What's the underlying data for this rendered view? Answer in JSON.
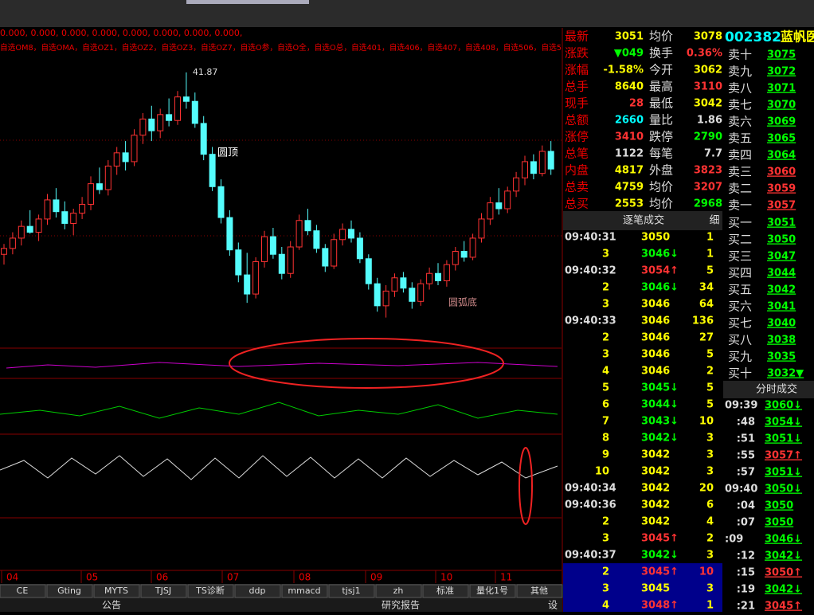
{
  "header": {
    "values_line": "0.000, 0.000, 0.000, 0.000, 0.000, 0.000, 0.000, 0.000,",
    "formula_line": "自选OM8，自选OMA，自选OZ1，自选OZ2，自选OZ3，自选OZ7，自选O参，自选O全，自选O总，自选401，自选406，自选407，自选408，自选506，自选5"
  },
  "kline": {
    "ylim": [
      23.5,
      43
    ],
    "high_label": "41.87",
    "top_note": "圆顶",
    "bottom_note": "圆弧底",
    "months": [
      "04",
      "05",
      "06",
      "07",
      "08",
      "09",
      "10",
      "11"
    ],
    "candles": [
      [
        29.5,
        30.2,
        28.8,
        29.9
      ],
      [
        29.9,
        31.0,
        29.5,
        30.6
      ],
      [
        30.6,
        31.8,
        30.1,
        31.4
      ],
      [
        31.4,
        32.5,
        30.9,
        31.0
      ],
      [
        31.0,
        32.2,
        30.4,
        31.9
      ],
      [
        31.9,
        33.6,
        31.5,
        33.2
      ],
      [
        33.2,
        34.0,
        32.0,
        32.4
      ],
      [
        32.4,
        33.1,
        31.2,
        31.6
      ],
      [
        31.6,
        32.6,
        30.8,
        32.3
      ],
      [
        32.3,
        33.4,
        31.9,
        32.9
      ],
      [
        32.9,
        34.8,
        32.5,
        34.3
      ],
      [
        34.3,
        35.4,
        33.6,
        33.9
      ],
      [
        33.9,
        35.9,
        33.5,
        35.5
      ],
      [
        35.5,
        36.8,
        34.9,
        36.4
      ],
      [
        36.4,
        37.2,
        35.2,
        35.8
      ],
      [
        35.8,
        38.0,
        35.5,
        37.6
      ],
      [
        37.6,
        39.1,
        37.0,
        38.7
      ],
      [
        38.7,
        39.6,
        37.2,
        37.9
      ],
      [
        37.9,
        39.4,
        37.4,
        39.0
      ],
      [
        39.0,
        40.1,
        38.2,
        38.6
      ],
      [
        38.6,
        40.6,
        38.3,
        40.2
      ],
      [
        40.2,
        41.87,
        39.4,
        39.9
      ],
      [
        39.9,
        40.5,
        38.1,
        38.4
      ],
      [
        38.4,
        38.9,
        35.9,
        36.3
      ],
      [
        36.3,
        36.8,
        33.8,
        34.1
      ],
      [
        34.1,
        34.6,
        31.6,
        32.0
      ],
      [
        32.0,
        32.5,
        29.4,
        29.8
      ],
      [
        29.8,
        30.3,
        27.6,
        28.1
      ],
      [
        28.1,
        29.6,
        26.2,
        26.8
      ],
      [
        26.8,
        29.3,
        26.5,
        29.0
      ],
      [
        29.0,
        31.1,
        28.6,
        30.7
      ],
      [
        30.7,
        31.3,
        29.2,
        29.5
      ],
      [
        29.5,
        30.0,
        27.8,
        28.2
      ],
      [
        28.2,
        30.4,
        27.9,
        30.0
      ],
      [
        30.0,
        32.2,
        29.8,
        31.8
      ],
      [
        31.8,
        32.6,
        30.8,
        31.1
      ],
      [
        31.1,
        31.5,
        29.6,
        29.9
      ],
      [
        29.9,
        30.2,
        28.3,
        28.7
      ],
      [
        28.7,
        30.9,
        28.5,
        30.5
      ],
      [
        30.5,
        31.6,
        30.1,
        31.2
      ],
      [
        31.2,
        31.8,
        30.3,
        30.6
      ],
      [
        30.6,
        31.0,
        28.9,
        29.2
      ],
      [
        29.2,
        29.5,
        27.1,
        27.5
      ],
      [
        27.5,
        27.9,
        25.6,
        26.0
      ],
      [
        26.0,
        27.4,
        25.2,
        27.0
      ],
      [
        27.0,
        28.2,
        26.6,
        27.9
      ],
      [
        27.9,
        28.3,
        26.9,
        27.2
      ],
      [
        27.2,
        27.6,
        25.8,
        26.3
      ],
      [
        26.3,
        27.8,
        26.0,
        27.5
      ],
      [
        27.5,
        28.6,
        27.1,
        28.2
      ],
      [
        28.2,
        28.9,
        27.4,
        27.7
      ],
      [
        27.7,
        29.1,
        27.3,
        28.8
      ],
      [
        28.8,
        30.0,
        28.4,
        29.7
      ],
      [
        29.7,
        30.4,
        29.0,
        29.3
      ],
      [
        29.3,
        30.9,
        29.1,
        30.6
      ],
      [
        30.6,
        32.3,
        30.3,
        31.9
      ],
      [
        31.9,
        33.4,
        31.5,
        33.0
      ],
      [
        33.0,
        34.0,
        32.2,
        32.6
      ],
      [
        32.6,
        34.1,
        32.3,
        33.8
      ],
      [
        33.8,
        35.1,
        33.4,
        34.7
      ],
      [
        34.7,
        36.2,
        34.2,
        35.8
      ],
      [
        35.8,
        36.3,
        34.6,
        35.0
      ],
      [
        35.0,
        36.9,
        34.8,
        36.5
      ],
      [
        36.5,
        37.2,
        34.9,
        35.3
      ]
    ]
  },
  "quote": {
    "rows": [
      [
        "最新",
        "3051",
        "均价",
        "3078"
      ],
      [
        "涨跌",
        "▼049",
        "换手",
        "0.36%"
      ],
      [
        "涨幅",
        "-1.58%",
        "今开",
        "3062"
      ],
      [
        "总手",
        "8640",
        "最高",
        "3110"
      ],
      [
        "现手",
        "28",
        "最低",
        "3042"
      ],
      [
        "总额",
        "2660",
        "量比",
        "1.86"
      ],
      [
        "涨停",
        "3410",
        "跌停",
        "2790"
      ],
      [
        "总笔",
        "1122",
        "每笔",
        "7.7"
      ],
      [
        "内盘",
        "4817",
        "外盘",
        "3823"
      ],
      [
        "总卖",
        "4759",
        "均价",
        "3207"
      ],
      [
        "总买",
        "2553",
        "均价",
        "2968"
      ]
    ]
  },
  "ticks": {
    "title": "逐笔成交",
    "button": "细",
    "rows": [
      [
        "09:40:31",
        "3050",
        "1"
      ],
      [
        "3",
        "3046↓",
        "1"
      ],
      [
        "09:40:32",
        "3054↑",
        "5"
      ],
      [
        "2",
        "3046↓",
        "34"
      ],
      [
        "3",
        "3046",
        "64"
      ],
      [
        "09:40:33",
        "3046",
        "136"
      ],
      [
        "2",
        "3046",
        "27"
      ],
      [
        "3",
        "3046",
        "5"
      ],
      [
        "4",
        "3046",
        "2"
      ],
      [
        "5",
        "3045↓",
        "5"
      ],
      [
        "6",
        "3044↓",
        "5"
      ],
      [
        "7",
        "3043↓",
        "10"
      ],
      [
        "8",
        "3042↓",
        "3"
      ],
      [
        "9",
        "3042",
        "3"
      ],
      [
        "10",
        "3042",
        "3"
      ],
      [
        "09:40:34",
        "3042",
        "20"
      ],
      [
        "09:40:36",
        "3042",
        "6"
      ],
      [
        "2",
        "3042",
        "4"
      ],
      [
        "3",
        "3045↑",
        "2"
      ],
      [
        "09:40:37",
        "3042↓",
        "3"
      ],
      [
        "2",
        "3045↑",
        "10"
      ],
      [
        "3",
        "3045",
        "3"
      ],
      [
        "4",
        "3048↑",
        "1"
      ]
    ]
  },
  "book": {
    "code": "002382",
    "name": "蓝帆医",
    "sells": [
      [
        "卖十",
        "3075"
      ],
      [
        "卖九",
        "3072"
      ],
      [
        "卖八",
        "3071"
      ],
      [
        "卖七",
        "3070"
      ],
      [
        "卖六",
        "3069"
      ],
      [
        "卖五",
        "3065"
      ],
      [
        "卖四",
        "3064"
      ],
      [
        "卖三",
        "3060"
      ],
      [
        "卖二",
        "3059"
      ],
      [
        "卖一",
        "3057"
      ]
    ],
    "buys": [
      [
        "买一",
        "3051"
      ],
      [
        "买二",
        "3050"
      ],
      [
        "买三",
        "3047"
      ],
      [
        "买四",
        "3044"
      ],
      [
        "买五",
        "3042"
      ],
      [
        "买六",
        "3041"
      ],
      [
        "买七",
        "3040"
      ],
      [
        "买八",
        "3038"
      ],
      [
        "买九",
        "3035"
      ],
      [
        "买十",
        "3032▼"
      ]
    ]
  },
  "minute": {
    "title": "分时成交",
    "rows": [
      [
        "09:39",
        "3060↓"
      ],
      [
        ":48",
        "3054↓"
      ],
      [
        ":51",
        "3051↓"
      ],
      [
        ":55",
        "3057↑"
      ],
      [
        ":57",
        "3051↓"
      ],
      [
        "09:40",
        "3050↓"
      ],
      [
        ":04",
        "3050"
      ],
      [
        ":07",
        "3050"
      ],
      [
        ":09",
        "3046↓"
      ],
      [
        ":12",
        "3042↓"
      ],
      [
        ":15",
        "3050↑"
      ],
      [
        ":19",
        "3042↓"
      ],
      [
        ":21",
        "3045↑"
      ]
    ]
  },
  "tabs": [
    "CE",
    "Gting",
    "MYTS",
    "TJSJ",
    "TS诊断",
    "ddp",
    "mmacd",
    "tjsj1",
    "zh",
    "标准",
    "量化1号",
    "其他"
  ],
  "footer": [
    "公告",
    "研究报告",
    "设"
  ]
}
